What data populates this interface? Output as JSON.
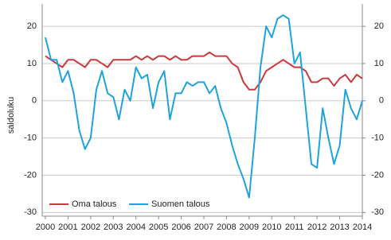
{
  "chart_data": {
    "type": "line",
    "y_label": "saldoluku",
    "x": [
      2000,
      2000.25,
      2000.5,
      2000.75,
      2001,
      2001.25,
      2001.5,
      2001.75,
      2002,
      2002.25,
      2002.5,
      2002.75,
      2003,
      2003.25,
      2003.5,
      2003.75,
      2004,
      2004.25,
      2004.5,
      2004.75,
      2005,
      2005.25,
      2005.5,
      2005.75,
      2006,
      2006.25,
      2006.5,
      2006.75,
      2007,
      2007.25,
      2007.5,
      2007.75,
      2008,
      2008.25,
      2008.5,
      2008.75,
      2009,
      2009.25,
      2009.5,
      2009.75,
      2010,
      2010.25,
      2010.5,
      2010.75,
      2011,
      2011.25,
      2011.5,
      2011.75,
      2012,
      2012.25,
      2012.5,
      2012.75,
      2013,
      2013.25,
      2013.5,
      2013.75,
      2014
    ],
    "series": [
      {
        "name": "Oma talous",
        "color": "#c9393d",
        "values": [
          12,
          11,
          10,
          9,
          11,
          11,
          10,
          9,
          11,
          11,
          10,
          9,
          11,
          11,
          11,
          11,
          12,
          11,
          12,
          11,
          12,
          12,
          11,
          12,
          11,
          11,
          12,
          12,
          12,
          13,
          12,
          12,
          12,
          10,
          9,
          5,
          3,
          3,
          5,
          8,
          9,
          10,
          11,
          10,
          9,
          9,
          8,
          5,
          5,
          6,
          6,
          4,
          6,
          7,
          5,
          7,
          6
        ]
      },
      {
        "name": "Suomen talous",
        "color": "#1ea3dc",
        "values": [
          17,
          11,
          11,
          5,
          8,
          2,
          -8,
          -13,
          -10,
          3,
          8,
          2,
          1,
          -5,
          3,
          0,
          9,
          6,
          7,
          -2,
          5,
          8,
          -5,
          2,
          2,
          5,
          4,
          5,
          5,
          2,
          4,
          -2,
          -6,
          -12,
          -17,
          -21,
          -26,
          -10,
          9,
          20,
          17,
          22,
          23,
          22,
          10,
          13,
          -2,
          -17,
          -18,
          -2,
          -10,
          -17,
          -12,
          3,
          -2,
          -5,
          0
        ]
      }
    ],
    "xlim": [
      2000,
      2014
    ],
    "xticks": [
      2000,
      2001,
      2002,
      2003,
      2004,
      2005,
      2006,
      2007,
      2008,
      2009,
      2010,
      2011,
      2012,
      2013,
      2014
    ],
    "ylim": [
      -31,
      26
    ],
    "yticks": [
      -30,
      -20,
      -10,
      0,
      10,
      20
    ],
    "y2lim": [
      -31,
      26
    ],
    "y2ticks": [
      -30,
      -20,
      -10,
      0,
      10,
      20
    ],
    "grid": true,
    "legend": "lower left"
  }
}
